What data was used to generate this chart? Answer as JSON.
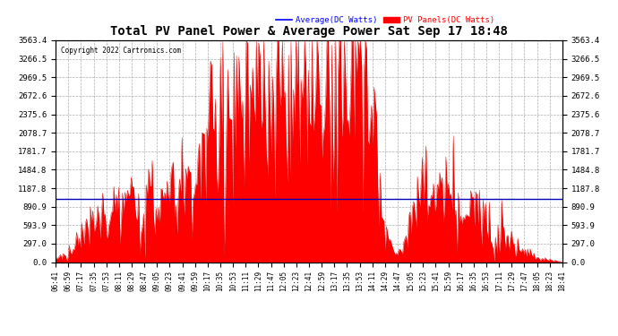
{
  "title": "Total PV Panel Power & Average Power Sat Sep 17 18:48",
  "copyright": "Copyright 2022 Cartronics.com",
  "legend_avg": "Average(DC Watts)",
  "legend_pv": "PV Panels(DC Watts)",
  "avg_line_value": 1012.24,
  "yticks": [
    0.0,
    297.0,
    593.9,
    890.9,
    1187.8,
    1484.8,
    1781.7,
    2078.7,
    2375.6,
    2672.6,
    2969.5,
    3266.5,
    3563.4
  ],
  "ymin": 0.0,
  "ymax": 3563.4,
  "xtick_labels": [
    "06:41",
    "06:59",
    "07:17",
    "07:35",
    "07:53",
    "08:11",
    "08:29",
    "08:47",
    "09:05",
    "09:23",
    "09:41",
    "09:59",
    "10:17",
    "10:35",
    "10:53",
    "11:11",
    "11:29",
    "11:47",
    "12:05",
    "12:23",
    "12:41",
    "12:59",
    "13:17",
    "13:35",
    "13:53",
    "14:11",
    "14:29",
    "14:47",
    "15:05",
    "15:23",
    "15:41",
    "15:59",
    "16:17",
    "16:35",
    "16:53",
    "17:11",
    "17:29",
    "17:47",
    "18:05",
    "18:23",
    "18:41"
  ],
  "avg_line_color": "#0000bb",
  "pv_fill_color": "#ff0000",
  "pv_line_color": "#dd0000",
  "background_color": "#ffffff",
  "grid_color": "#999999",
  "title_color": "#000000",
  "avg_legend_color": "#0000ff",
  "pv_legend_color": "#ff0000"
}
